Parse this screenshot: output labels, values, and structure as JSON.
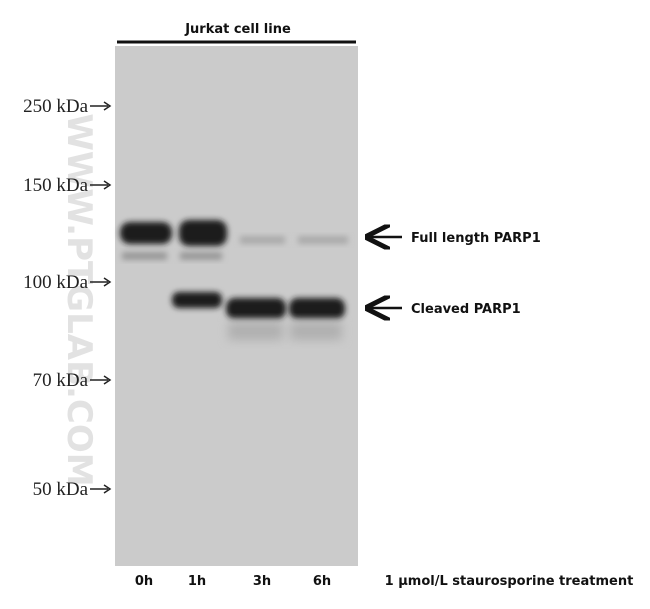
{
  "header": {
    "title": "Jurkat cell line"
  },
  "markers": [
    "250 kDa",
    "150 kDa",
    "100 kDa",
    "70 kDa",
    "50 kDa"
  ],
  "watermark": "WWW.PTGLAB.COM",
  "lanes": [
    "0h",
    "1h",
    "3h",
    "6h"
  ],
  "treatment": "1 μmol/L staurosporine treatment",
  "bands": [
    "Full length PARP1",
    "Cleaved PARP1"
  ]
}
